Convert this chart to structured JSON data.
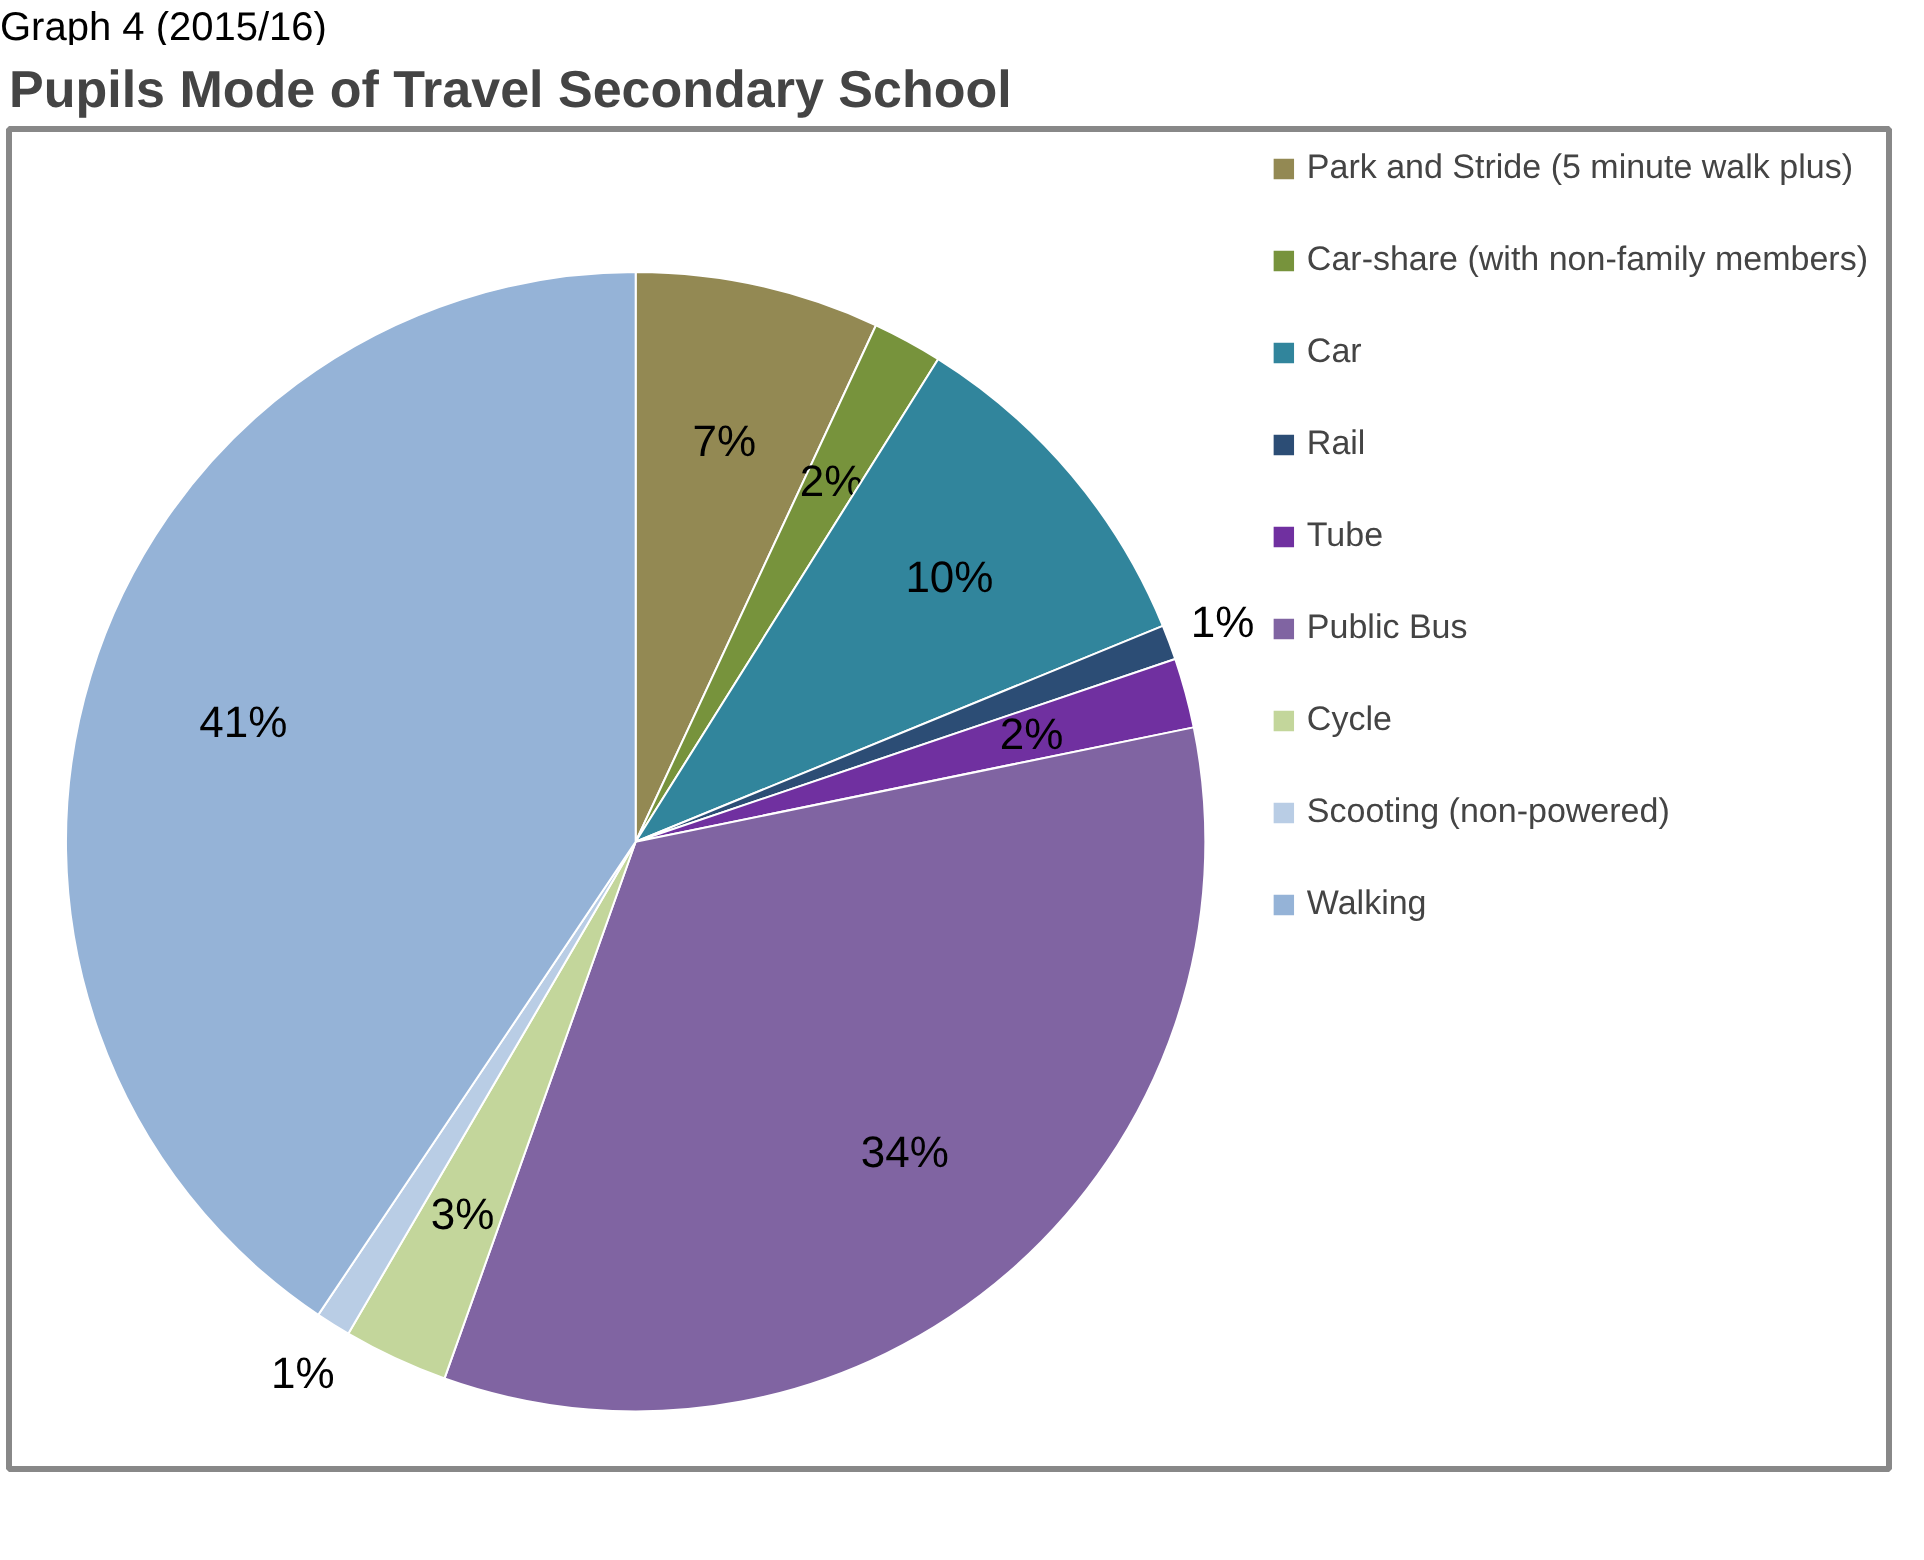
{
  "chart_data": {
    "type": "pie",
    "title": "Pupils Mode of Travel Secondary School",
    "annotations": [
      "Graph 4 (2015/16)"
    ],
    "categories": [
      "Park and Stride (5 minute walk plus)",
      "Car-share (with non-family members)",
      "Car",
      "Rail",
      "Tube",
      "Public Bus",
      "Cycle",
      "Scooting (non-powered)",
      "Walking"
    ],
    "values": [
      7,
      2,
      10,
      1,
      2,
      34,
      3,
      1,
      41
    ],
    "colors": [
      "#938953",
      "#77933c",
      "#31859c",
      "#2c4d75",
      "#7030a0",
      "#8064a2",
      "#c3d69b",
      "#b9cde5",
      "#95b3d7"
    ],
    "value_labels": [
      "7%",
      "2%",
      "10%",
      "1%",
      "2%",
      "34%",
      "3%",
      "1%",
      "41%"
    ],
    "legend": "right"
  }
}
